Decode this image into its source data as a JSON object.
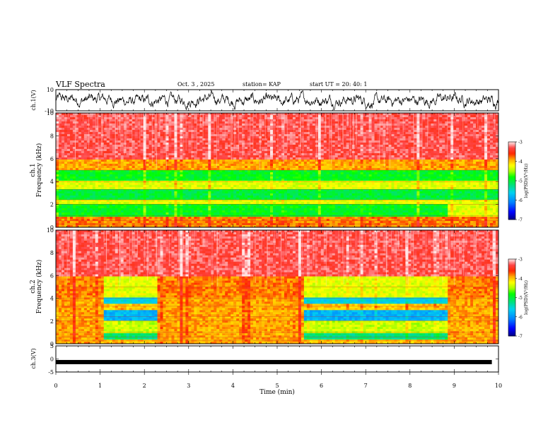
{
  "header": {
    "title": "VLF Spectra",
    "date": "Oct. 3 , 2025",
    "station": "station= KAP",
    "start_ut": "start UT = 20: 40: 1"
  },
  "colorbar": {
    "ticks": [
      "-3",
      "-4",
      "-5",
      "-6",
      "-7"
    ],
    "label": "log(PSD)(V²/Hz)",
    "colors": [
      "#000090",
      "#0000ff",
      "#0080ff",
      "#00d0ff",
      "#00e070",
      "#00ff00",
      "#b0ff00",
      "#ffff00",
      "#ffb000",
      "#ff3000",
      "#ff6060",
      "#ffffff"
    ]
  },
  "chart_data": [
    {
      "type": "line",
      "panel": "ch1-waveform",
      "ylabel": "ch.1(V)",
      "ylim": [
        -10,
        10
      ],
      "yticks": [
        "10",
        "-10"
      ],
      "xlim": [
        0,
        10
      ],
      "description_value": "noisy waveform, mostly between -6 and +6 V"
    },
    {
      "type": "heatmap",
      "panel": "ch1-spectrogram",
      "ylabel": "ch.1 Frequency (kHz)",
      "ylim": [
        0,
        10
      ],
      "xlim": [
        0,
        10
      ],
      "yticks": [
        "0",
        "2",
        "4",
        "6",
        "8",
        "10"
      ],
      "zlim": [
        -7,
        -3
      ],
      "bands": [
        {
          "f_low": 6.0,
          "f_high": 10.0,
          "level": -3.3
        },
        {
          "f_low": 5.0,
          "f_high": 6.0,
          "level": -3.9
        },
        {
          "f_low": 4.0,
          "f_high": 5.0,
          "level": -4.9
        },
        {
          "f_low": 3.3,
          "f_high": 4.0,
          "level": -4.3
        },
        {
          "f_low": 2.4,
          "f_high": 3.3,
          "level": -5.0
        },
        {
          "f_low": 2.0,
          "f_high": 2.4,
          "level": -4.3
        },
        {
          "f_low": 1.0,
          "f_high": 2.0,
          "level": -4.9
        },
        {
          "f_low": 0.0,
          "f_high": 1.0,
          "level": -3.8
        }
      ]
    },
    {
      "type": "heatmap",
      "panel": "ch2-spectrogram",
      "ylabel": "ch.2 Frequency (kHz)",
      "ylim": [
        0,
        10
      ],
      "xlim": [
        0,
        10
      ],
      "yticks": [
        "0",
        "2",
        "4",
        "6",
        "8",
        "10"
      ],
      "zlim": [
        -7,
        -3
      ],
      "quiet_intervals_min": [
        [
          1.1,
          2.3
        ],
        [
          5.6,
          8.85
        ]
      ],
      "bands_quiet": [
        {
          "f_low": 6.0,
          "f_high": 10.0,
          "level": -3.3
        },
        {
          "f_low": 4.0,
          "f_high": 6.0,
          "level": -4.3
        },
        {
          "f_low": 3.6,
          "f_high": 4.0,
          "level": -5.6
        },
        {
          "f_low": 2.0,
          "f_high": 3.0,
          "level": -5.8
        },
        {
          "f_low": 1.0,
          "f_high": 2.0,
          "level": -4.4
        },
        {
          "f_low": 0.3,
          "f_high": 1.0,
          "level": -5.2
        },
        {
          "f_low": 0.0,
          "f_high": 0.3,
          "level": -4.0
        }
      ],
      "bands_active": [
        {
          "f_low": 6.0,
          "f_high": 10.0,
          "level": -3.3
        },
        {
          "f_low": 4.0,
          "f_high": 6.0,
          "level": -3.8
        },
        {
          "f_low": 0.0,
          "f_high": 4.0,
          "level": -3.9
        }
      ]
    },
    {
      "type": "line",
      "panel": "ch3-waveform",
      "ylabel": "ch.3(V)",
      "ylim": [
        -5,
        5
      ],
      "yticks": [
        "5",
        "0",
        "-5"
      ],
      "xlim": [
        0,
        9.85
      ],
      "values_constant": -1.2,
      "xlabel": "Time (min)",
      "xticks": [
        "0",
        "1",
        "2",
        "3",
        "4",
        "5",
        "6",
        "7",
        "8",
        "9",
        "10"
      ]
    }
  ]
}
